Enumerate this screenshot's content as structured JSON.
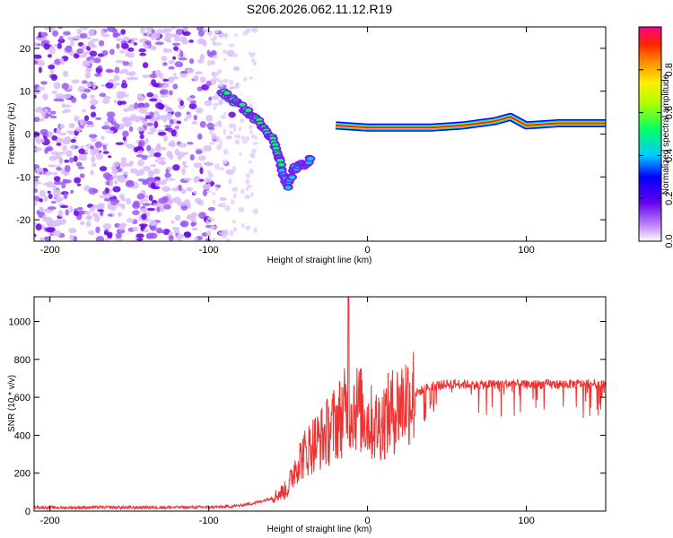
{
  "chart_data": [
    {
      "type": "heatmap",
      "title": "S206.2026.062.11.12.R19",
      "xlabel": "Height of straight line (km)",
      "ylabel": "Frequency (Hz)",
      "xlim": [
        -210,
        150
      ],
      "ylim": [
        -25,
        25
      ],
      "x_ticks": [
        -200,
        -100,
        0,
        100
      ],
      "y_ticks": [
        -20,
        -10,
        0,
        10,
        20
      ],
      "colorbar": {
        "label": "Normalized spectral amplitude",
        "range": [
          0,
          1
        ],
        "ticks": [
          0.0,
          0.2,
          0.4,
          0.6,
          0.8
        ],
        "tick_labels": [
          "0.0",
          "0.2",
          "0.4",
          "0.6",
          "0.8"
        ]
      },
      "features": [
        {
          "name": "noise-region",
          "x_range": [
            -210,
            -80
          ],
          "y_range": [
            -25,
            25
          ],
          "amplitude": 0.1
        },
        {
          "name": "descending-trace",
          "points": [
            [
              -92,
              10
            ],
            [
              -85,
              8
            ],
            [
              -78,
              6
            ],
            [
              -72,
              4
            ],
            [
              -66,
              2
            ],
            [
              -60,
              -1
            ],
            [
              -56,
              -5
            ],
            [
              -54,
              -8
            ]
          ],
          "amplitude": 0.45
        },
        {
          "name": "lower-blob",
          "points": [
            [
              -54,
              -9
            ],
            [
              -50,
              -12
            ],
            [
              -46,
              -8
            ],
            [
              -40,
              -7
            ],
            [
              -36,
              -6
            ]
          ],
          "amplitude": 0.4
        },
        {
          "name": "flat-line",
          "points": [
            [
              -20,
              2
            ],
            [
              0,
              1.5
            ],
            [
              40,
              1.5
            ],
            [
              60,
              2
            ],
            [
              80,
              3
            ],
            [
              90,
              4
            ],
            [
              100,
              2
            ],
            [
              120,
              2.5
            ],
            [
              150,
              2.5
            ]
          ],
          "amplitude": 0.9
        }
      ]
    },
    {
      "type": "line",
      "title": "",
      "xlabel": "Height of straight line (km)",
      "ylabel": "SNR (10 * v/v)",
      "xlim": [
        -210,
        150
      ],
      "ylim": [
        0,
        1130
      ],
      "x_ticks": [
        -200,
        -100,
        0,
        100
      ],
      "y_ticks": [
        0,
        200,
        400,
        600,
        800,
        1000
      ],
      "series": [
        {
          "name": "SNR",
          "color": "#ee3333",
          "x": [
            -210,
            -190,
            -170,
            -150,
            -130,
            -110,
            -90,
            -80,
            -70,
            -60,
            -50,
            -45,
            -40,
            -35,
            -30,
            -25,
            -20,
            -15,
            -10,
            -5,
            0,
            5,
            10,
            15,
            20,
            25,
            30,
            35,
            40,
            50,
            60,
            70,
            80,
            90,
            100,
            110,
            120,
            130,
            140,
            150
          ],
          "values": [
            20,
            18,
            20,
            19,
            20,
            20,
            22,
            30,
            45,
            70,
            120,
            250,
            300,
            350,
            380,
            420,
            470,
            520,
            560,
            540,
            480,
            450,
            480,
            520,
            560,
            600,
            620,
            640,
            660,
            670,
            670,
            665,
            670,
            672,
            665,
            670,
            668,
            670,
            672,
            670
          ],
          "spike": {
            "x": -12,
            "value": 1130
          }
        }
      ]
    }
  ],
  "colors": {
    "frame": "#000000",
    "snr_line": "#ee3333"
  }
}
